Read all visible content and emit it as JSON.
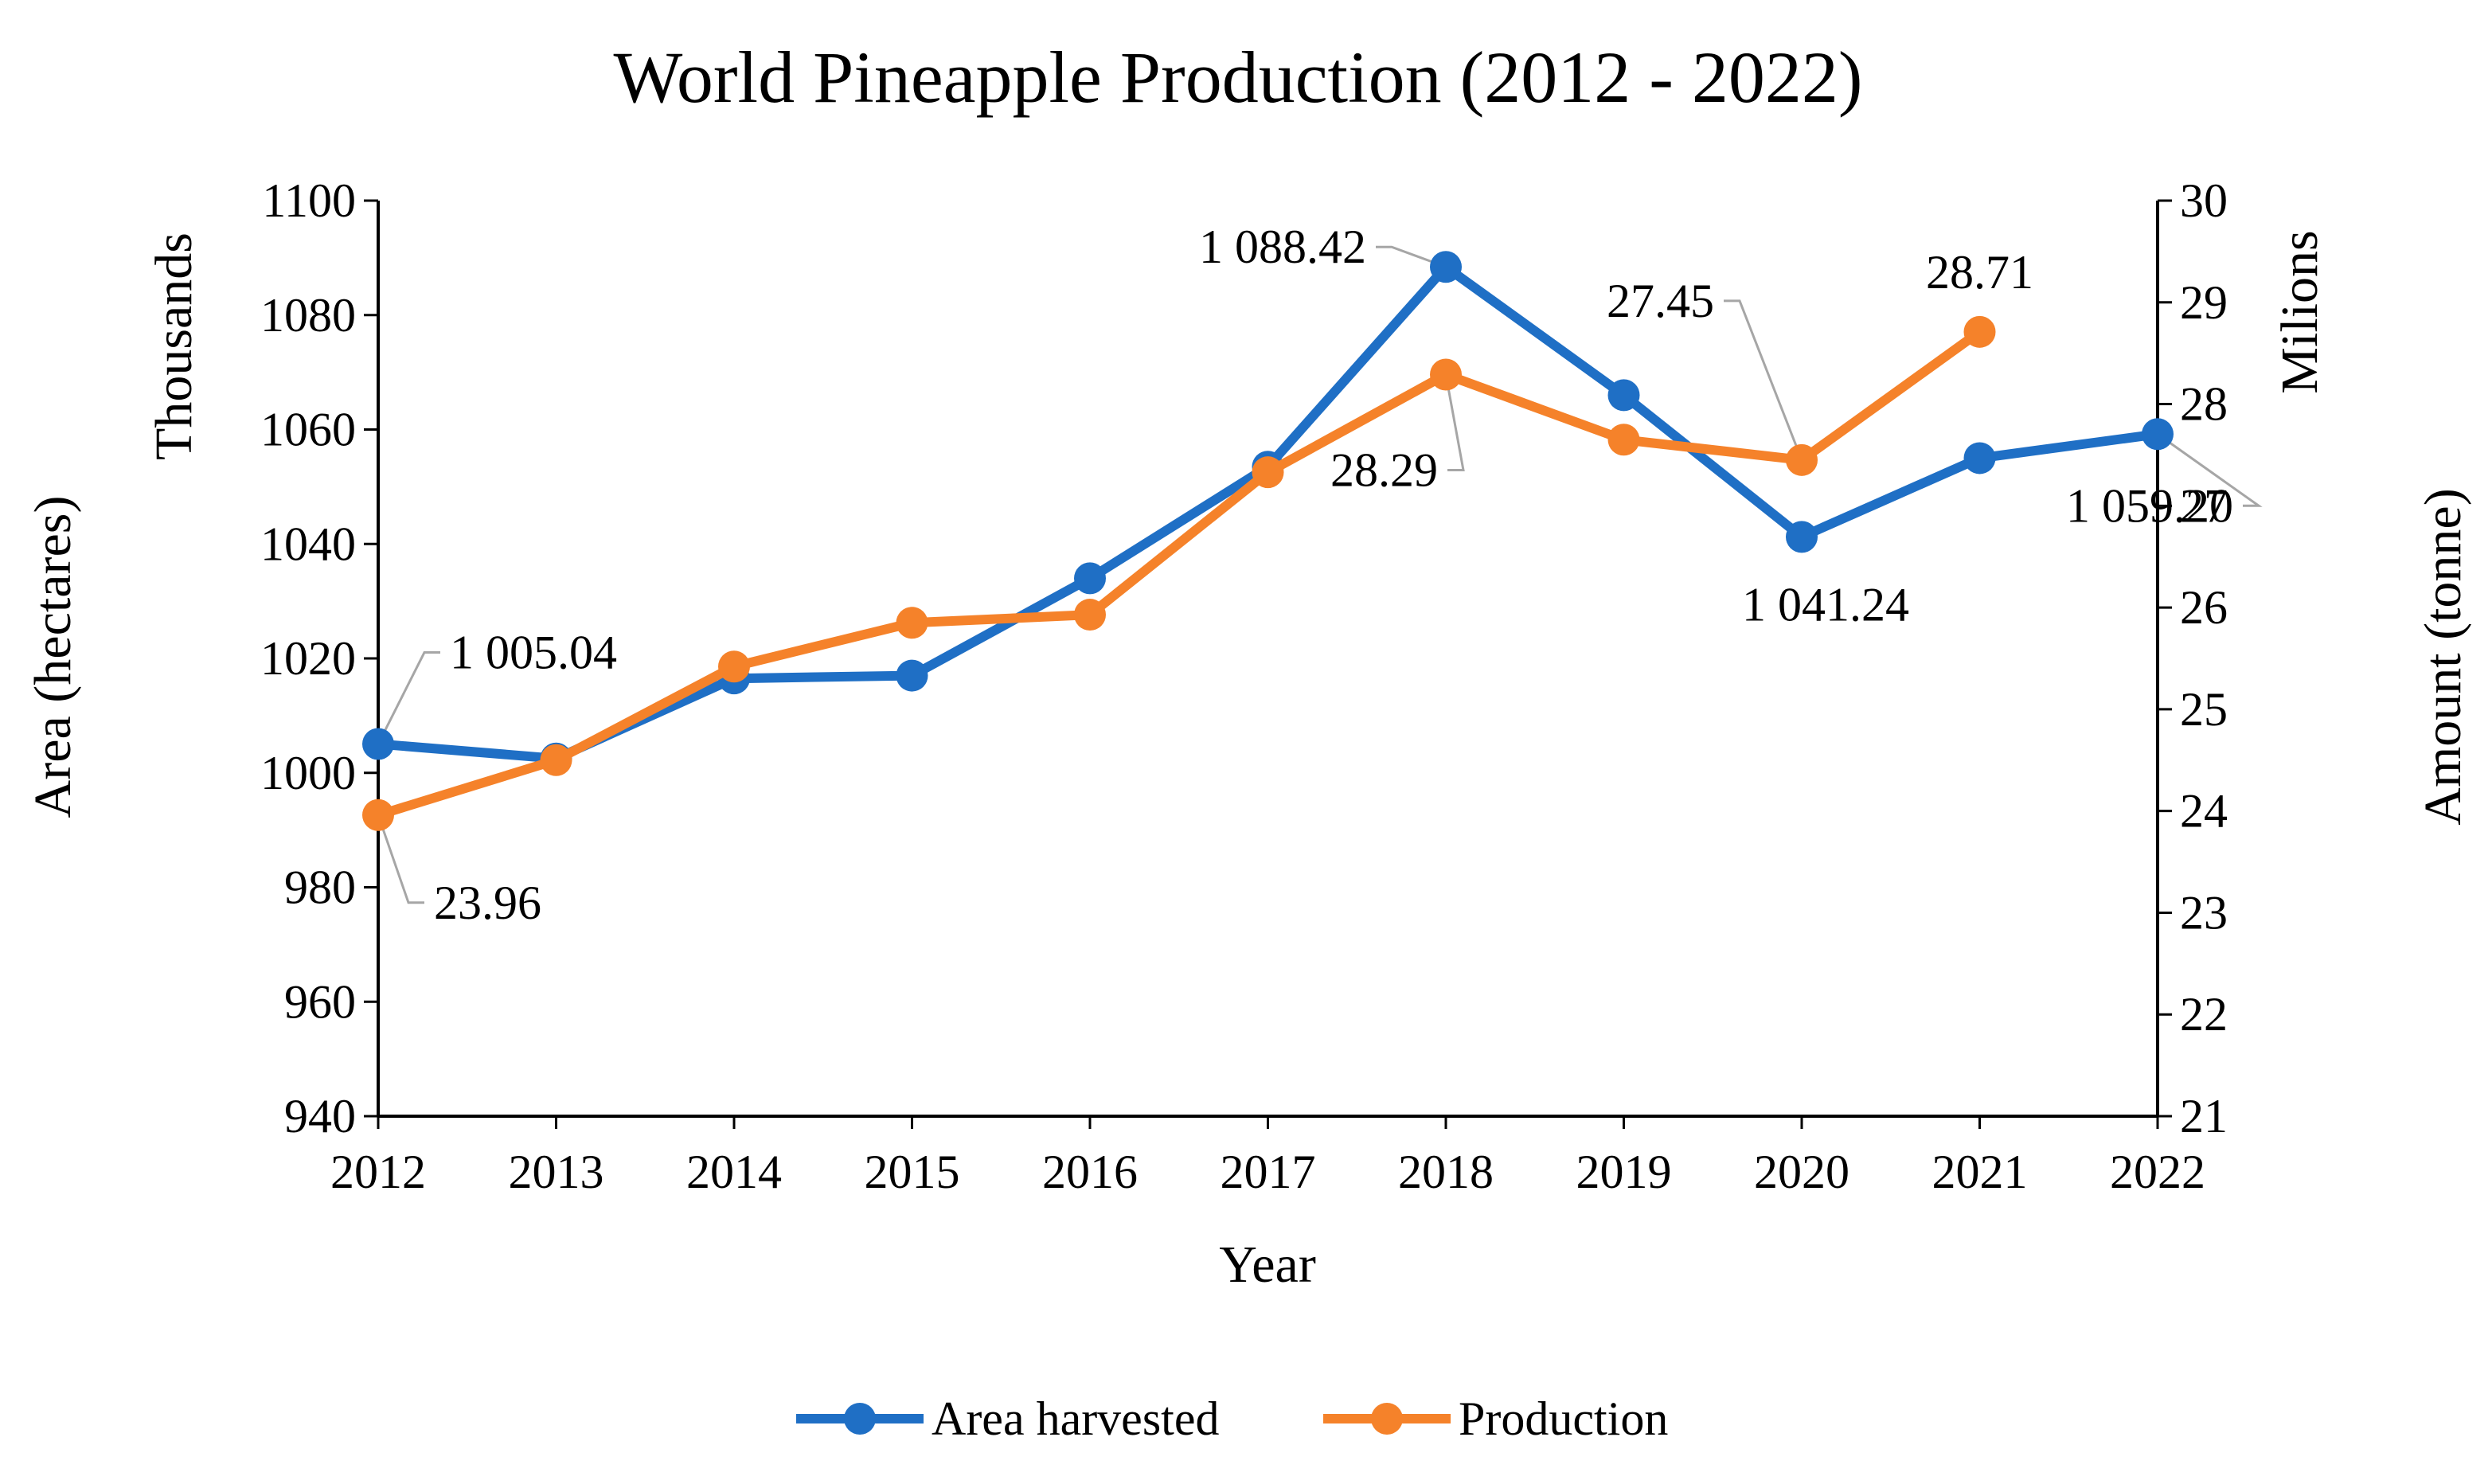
{
  "chart_data": {
    "type": "line",
    "title": "World Pineapple Production (2012 - 2022)",
    "xlabel": "Year",
    "categories": [
      "2012",
      "2013",
      "2014",
      "2015",
      "2016",
      "2017",
      "2018",
      "2019",
      "2020",
      "2021",
      "2022"
    ],
    "y_left": {
      "label": "Area (hectares)",
      "unit_label": "Thousands",
      "ylim": [
        940,
        1100
      ],
      "ticks": [
        "940",
        "960",
        "980",
        "1000",
        "1020",
        "1040",
        "1060",
        "1080",
        "1100"
      ]
    },
    "y_right": {
      "label": "Amount (tonne)",
      "unit_label": "Milions",
      "ylim": [
        21,
        30
      ],
      "ticks": [
        "21",
        "22",
        "23",
        "24",
        "25",
        "26",
        "27",
        "28",
        "29",
        "30"
      ]
    },
    "series": [
      {
        "name": "Area harvested",
        "axis": "left",
        "color": "#1f6fc5",
        "values": [
          1005.04,
          1002.5,
          1016.5,
          1017.0,
          1034.0,
          1053.5,
          1088.42,
          1066.0,
          1041.24,
          1055.0,
          1059.2
        ]
      },
      {
        "name": "Production",
        "axis": "right",
        "color": "#f5822a",
        "values": [
          23.96,
          24.5,
          25.42,
          25.85,
          25.93,
          27.33,
          28.29,
          27.65,
          27.45,
          28.71,
          null
        ]
      }
    ],
    "data_labels": [
      {
        "series": 0,
        "index": 0,
        "text": "1 005.04"
      },
      {
        "series": 0,
        "index": 6,
        "text": "1 088.42"
      },
      {
        "series": 0,
        "index": 8,
        "text": "1 041.24"
      },
      {
        "series": 0,
        "index": 10,
        "text": "1 059.20"
      },
      {
        "series": 1,
        "index": 0,
        "text": "23.96"
      },
      {
        "series": 1,
        "index": 6,
        "text": "28.29"
      },
      {
        "series": 1,
        "index": 8,
        "text": "27.45"
      },
      {
        "series": 1,
        "index": 9,
        "text": "28.71"
      }
    ],
    "legend": {
      "position": "bottom",
      "items": [
        "Area harvested",
        "Production"
      ]
    },
    "grid": false
  },
  "colors": {
    "area": "#1f6fc5",
    "production": "#f5822a",
    "leader": "#a6a6a6",
    "axis": "#000000"
  }
}
